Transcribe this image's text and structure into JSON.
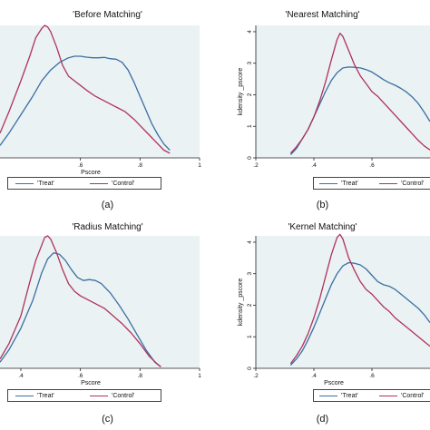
{
  "colors": {
    "treat": "#3b6fa3",
    "control": "#b0325d",
    "plot_bg": "#eaf2f3"
  },
  "legend": {
    "treat": "'Treat'",
    "control": "'Control'"
  },
  "panels": [
    {
      "title": "'Before Matching'",
      "caption": "(a)",
      "xlabel": "Pscore",
      "ylabel": ""
    },
    {
      "title": "'Nearest Matching'",
      "caption": "(b)",
      "xlabel": "",
      "ylabel": "kdensity _pscore"
    },
    {
      "title": "'Radius Matching'",
      "caption": "(c)",
      "xlabel": "Pscore",
      "ylabel": ""
    },
    {
      "title": "'Kernel Matching'",
      "caption": "(d)",
      "xlabel": "Pscore",
      "ylabel": "kdensity _pscore"
    }
  ],
  "chart_data": [
    {
      "type": "line",
      "title": "'Before Matching'",
      "xlabel": "Pscore",
      "ylabel": "",
      "xlim": [
        0.33,
        1.0
      ],
      "ylim": [
        0,
        4.3
      ],
      "xticks": [
        ".6",
        ".8",
        "1"
      ],
      "xtick_values": [
        0.6,
        0.8,
        1.0
      ],
      "yticks": [],
      "series": [
        {
          "name": "'Treat'",
          "x": [
            0.33,
            0.36,
            0.4,
            0.44,
            0.47,
            0.5,
            0.53,
            0.56,
            0.58,
            0.6,
            0.62,
            0.64,
            0.66,
            0.68,
            0.7,
            0.72,
            0.74,
            0.76,
            0.78,
            0.8,
            0.82,
            0.84,
            0.86,
            0.88,
            0.9
          ],
          "y": [
            0.4,
            0.8,
            1.4,
            2.0,
            2.5,
            2.85,
            3.1,
            3.25,
            3.3,
            3.3,
            3.27,
            3.25,
            3.25,
            3.26,
            3.22,
            3.2,
            3.1,
            2.85,
            2.45,
            2.0,
            1.55,
            1.1,
            0.75,
            0.45,
            0.25
          ]
        },
        {
          "name": "'Control'",
          "x": [
            0.33,
            0.36,
            0.4,
            0.43,
            0.45,
            0.47,
            0.48,
            0.49,
            0.5,
            0.52,
            0.54,
            0.56,
            0.58,
            0.6,
            0.62,
            0.65,
            0.68,
            0.72,
            0.75,
            0.78,
            0.8,
            0.83,
            0.86,
            0.88,
            0.9
          ],
          "y": [
            0.8,
            1.5,
            2.5,
            3.3,
            3.9,
            4.2,
            4.3,
            4.25,
            4.1,
            3.6,
            3.0,
            2.65,
            2.5,
            2.35,
            2.2,
            2.0,
            1.85,
            1.65,
            1.5,
            1.25,
            1.05,
            0.75,
            0.45,
            0.25,
            0.15
          ]
        }
      ]
    },
    {
      "type": "line",
      "title": "'Nearest Matching'",
      "xlabel": "",
      "ylabel": "kdensity _pscore",
      "xlim": [
        0.2,
        0.8
      ],
      "ylim": [
        0,
        4.2
      ],
      "xticks": [
        ".2",
        ".4",
        ".6"
      ],
      "xtick_values": [
        0.2,
        0.4,
        0.6
      ],
      "yticks": [
        "0",
        "1",
        "2",
        "3",
        "4"
      ],
      "ytick_values": [
        0,
        1,
        2,
        3,
        4
      ],
      "series": [
        {
          "name": "'Treat'",
          "x": [
            0.32,
            0.34,
            0.36,
            0.38,
            0.4,
            0.42,
            0.44,
            0.46,
            0.48,
            0.5,
            0.52,
            0.54,
            0.56,
            0.58,
            0.6,
            0.62,
            0.64,
            0.66,
            0.68,
            0.7,
            0.72,
            0.74,
            0.76,
            0.78,
            0.8
          ],
          "y": [
            0.1,
            0.3,
            0.6,
            0.9,
            1.3,
            1.7,
            2.1,
            2.45,
            2.7,
            2.85,
            2.88,
            2.87,
            2.85,
            2.8,
            2.72,
            2.6,
            2.48,
            2.38,
            2.3,
            2.2,
            2.08,
            1.92,
            1.72,
            1.45,
            1.15
          ]
        },
        {
          "name": "'Control'",
          "x": [
            0.32,
            0.34,
            0.36,
            0.38,
            0.4,
            0.42,
            0.44,
            0.46,
            0.48,
            0.49,
            0.5,
            0.52,
            0.54,
            0.56,
            0.58,
            0.6,
            0.62,
            0.64,
            0.66,
            0.68,
            0.7,
            0.72,
            0.74,
            0.76,
            0.78,
            0.8
          ],
          "y": [
            0.15,
            0.35,
            0.6,
            0.9,
            1.3,
            1.8,
            2.4,
            3.1,
            3.75,
            3.95,
            3.85,
            3.4,
            2.95,
            2.6,
            2.35,
            2.1,
            1.95,
            1.75,
            1.55,
            1.35,
            1.15,
            0.95,
            0.75,
            0.55,
            0.38,
            0.25
          ]
        }
      ]
    },
    {
      "type": "line",
      "title": "'Radius Matching'",
      "xlabel": "Pscore",
      "ylabel": "",
      "xlim": [
        0.33,
        1.0
      ],
      "ylim": [
        0,
        4.3
      ],
      "xticks": [
        ".4",
        ".6",
        ".8",
        "1"
      ],
      "xtick_values": [
        0.4,
        0.6,
        0.8,
        1.0
      ],
      "yticks": [],
      "series": [
        {
          "name": "'Treat'",
          "x": [
            0.33,
            0.36,
            0.4,
            0.44,
            0.47,
            0.49,
            0.51,
            0.53,
            0.55,
            0.57,
            0.59,
            0.61,
            0.63,
            0.65,
            0.67,
            0.7,
            0.73,
            0.76,
            0.79,
            0.82,
            0.85,
            0.87
          ],
          "y": [
            0.2,
            0.6,
            1.3,
            2.2,
            3.1,
            3.55,
            3.75,
            3.7,
            3.5,
            3.2,
            2.95,
            2.85,
            2.88,
            2.85,
            2.75,
            2.45,
            2.05,
            1.6,
            1.1,
            0.6,
            0.2,
            0.05
          ]
        },
        {
          "name": "'Control'",
          "x": [
            0.33,
            0.36,
            0.4,
            0.43,
            0.45,
            0.47,
            0.48,
            0.49,
            0.5,
            0.52,
            0.54,
            0.56,
            0.58,
            0.6,
            0.62,
            0.65,
            0.68,
            0.71,
            0.74,
            0.77,
            0.8,
            0.83,
            0.86,
            0.87
          ],
          "y": [
            0.3,
            0.8,
            1.7,
            2.8,
            3.5,
            4.0,
            4.25,
            4.3,
            4.2,
            3.75,
            3.2,
            2.75,
            2.5,
            2.35,
            2.25,
            2.1,
            1.95,
            1.7,
            1.45,
            1.15,
            0.8,
            0.4,
            0.12,
            0.05
          ]
        }
      ]
    },
    {
      "type": "line",
      "title": "'Kernel Matching'",
      "xlabel": "Pscore",
      "ylabel": "kdensity _pscore",
      "xlim": [
        0.2,
        0.8
      ],
      "ylim": [
        0,
        4.2
      ],
      "xticks": [
        ".2",
        ".4",
        ".6"
      ],
      "xtick_values": [
        0.2,
        0.4,
        0.6
      ],
      "yticks": [
        "0",
        "1",
        "2",
        "3",
        "4"
      ],
      "ytick_values": [
        0,
        1,
        2,
        3,
        4
      ],
      "series": [
        {
          "name": "'Treat'",
          "x": [
            0.32,
            0.34,
            0.36,
            0.38,
            0.4,
            0.42,
            0.44,
            0.46,
            0.48,
            0.5,
            0.52,
            0.54,
            0.56,
            0.58,
            0.6,
            0.62,
            0.64,
            0.66,
            0.68,
            0.7,
            0.72,
            0.74,
            0.76,
            0.78,
            0.8
          ],
          "y": [
            0.1,
            0.3,
            0.55,
            0.9,
            1.3,
            1.75,
            2.2,
            2.65,
            3.0,
            3.25,
            3.35,
            3.33,
            3.28,
            3.15,
            2.95,
            2.75,
            2.65,
            2.6,
            2.5,
            2.35,
            2.2,
            2.05,
            1.9,
            1.7,
            1.45
          ]
        },
        {
          "name": "'Control'",
          "x": [
            0.32,
            0.34,
            0.36,
            0.38,
            0.4,
            0.42,
            0.44,
            0.46,
            0.48,
            0.49,
            0.5,
            0.51,
            0.52,
            0.54,
            0.56,
            0.58,
            0.6,
            0.62,
            0.64,
            0.66,
            0.68,
            0.7,
            0.72,
            0.74,
            0.76,
            0.78,
            0.8
          ],
          "y": [
            0.15,
            0.4,
            0.7,
            1.1,
            1.6,
            2.2,
            2.9,
            3.6,
            4.15,
            4.25,
            4.1,
            3.8,
            3.5,
            3.1,
            2.75,
            2.5,
            2.35,
            2.15,
            1.95,
            1.8,
            1.6,
            1.45,
            1.3,
            1.15,
            1.0,
            0.85,
            0.7
          ]
        }
      ]
    }
  ]
}
